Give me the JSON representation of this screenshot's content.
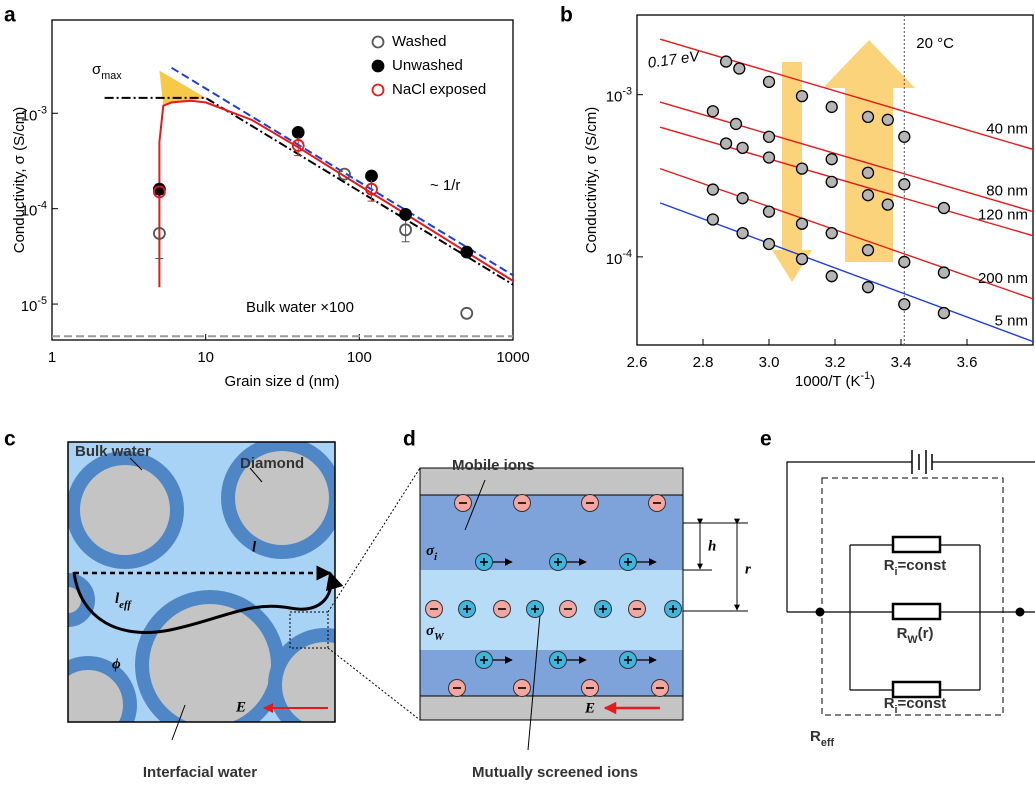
{
  "chart_data": [
    {
      "type": "scatter",
      "label": "a",
      "xlabel": "Grain size d (nm)",
      "ylabel": "Conductivity, σ (S/cm)",
      "xscale": "log",
      "yscale": "log",
      "xlim": [
        1,
        1000
      ],
      "ylim": [
        4.2e-06,
        0.0095
      ],
      "xticks": [
        1,
        10,
        100,
        1000
      ],
      "yticks": [
        {
          "value": 1e-05,
          "label": "10",
          "exp": "-5"
        },
        {
          "value": 0.0001,
          "label": "10",
          "exp": "-4"
        },
        {
          "value": 0.001,
          "label": "10",
          "exp": "-3"
        }
      ],
      "legend": "upper right",
      "series": [
        {
          "name": "Washed",
          "color": "#555555",
          "filled": false,
          "x": [
            5,
            80,
            200,
            500
          ],
          "values": [
            5.5e-05,
            0.00023,
            6e-05,
            8e-06
          ],
          "errors": [
            2.5e-05,
            null,
            1.5e-05,
            null
          ]
        },
        {
          "name": "Unwashed",
          "color": "#000000",
          "filled": true,
          "x": [
            5,
            40,
            120,
            200,
            500
          ],
          "values": [
            0.00016,
            0.00063,
            0.00022,
            8.7e-05,
            3.5e-05
          ],
          "errors": [
            null,
            null,
            null,
            null,
            null
          ]
        },
        {
          "name": "NaCl exposed",
          "color": "#e41a1c",
          "filled": false,
          "x": [
            5,
            40,
            120
          ],
          "values": [
            0.00015,
            0.00046,
            0.00016
          ],
          "errors": [
            null,
            0.0001,
            4e-05
          ]
        }
      ],
      "areas": [
        {
          "color": "#f7c948",
          "x": [
            5,
            10,
            8,
            6,
            5.3,
            5
          ],
          "values": [
            0.0028,
            0.00145,
            0.00135,
            0.0013,
            0.0012,
            0.0028
          ]
        }
      ],
      "curves": [
        {
          "color": "#999999",
          "style": "dashed",
          "x": [
            1,
            1000
          ],
          "values": [
            4.6e-06,
            4.6e-06
          ]
        },
        {
          "color": "#1f3fd6",
          "style": "dashed",
          "x": [
            6,
            1000
          ],
          "values": [
            0.003,
            2e-05
          ]
        },
        {
          "color": "#000000",
          "style": "dashdot",
          "x": [
            2.2,
            10,
            1000
          ],
          "values": [
            0.00145,
            0.00145,
            1.6e-05
          ]
        },
        {
          "color": "#e41a1c",
          "style": "solid",
          "x": [
            5,
            5,
            5.3,
            6,
            8,
            10,
            20,
            40,
            100,
            200,
            500,
            1000
          ],
          "values": [
            1.5e-05,
            0.0005,
            0.0012,
            0.0013,
            0.00135,
            0.0013,
            0.00085,
            0.00044,
            0.000175,
            8.8e-05,
            3.5e-05,
            1.75e-05
          ]
        }
      ],
      "annotations": {
        "sigma_max": {
          "base": "σ",
          "sub": "max"
        },
        "slope": "~ 1/r",
        "bulk": "Bulk water ×100"
      }
    },
    {
      "type": "scatter",
      "label": "b",
      "xlabel": {
        "base": "1000/T (K",
        "sup": "-1",
        "tail": ")"
      },
      "ylabel": "Conductivity, σ (S/cm)",
      "xscale": "linear",
      "yscale": "log",
      "xlim": [
        2.6,
        3.8
      ],
      "ylim": [
        2.86e-05,
        0.0031
      ],
      "xticks": [
        2.6,
        2.8,
        {
          "value": 3,
          "label": "3.0"
        },
        3.2,
        3.4,
        3.6
      ],
      "yticks": [
        {
          "value": 0.0001,
          "label": "10",
          "exp": "-4"
        },
        {
          "value": 0.001,
          "label": "10",
          "exp": "-3"
        }
      ],
      "marker_color": "#b5b5b5",
      "series": [
        {
          "name": "40 nm",
          "color": "#e41a1c",
          "x": [
            2.87,
            2.91,
            3.0,
            3.1,
            3.19,
            3.3,
            3.36,
            3.41
          ],
          "values": [
            0.0016,
            0.00145,
            0.0012,
            0.00098,
            0.00084,
            0.00073,
            0.0007,
            0.00055
          ],
          "fit_x": [
            2.67,
            3.8
          ],
          "fit_values": [
            0.0022,
            0.00046
          ]
        },
        {
          "name": "80 nm",
          "color": "#e41a1c",
          "x": [
            2.83,
            2.9,
            3.0,
            3.19,
            3.3,
            3.41
          ],
          "values": [
            0.00079,
            0.00066,
            0.00055,
            0.0004,
            0.00033,
            0.00028
          ],
          "fit_x": [
            2.67,
            3.8
          ],
          "fit_values": [
            0.0009,
            0.00019
          ]
        },
        {
          "name": "120 nm",
          "color": "#e41a1c",
          "x": [
            2.87,
            2.92,
            3.0,
            3.1,
            3.19,
            3.3,
            3.36,
            3.53
          ],
          "values": [
            0.0005,
            0.00047,
            0.00041,
            0.00035,
            0.00029,
            0.00024,
            0.00021,
            0.0002
          ],
          "fit_x": [
            2.67,
            3.8
          ],
          "fit_values": [
            0.00063,
            0.000135
          ]
        },
        {
          "name": "200 nm",
          "color": "#e41a1c",
          "x": [
            2.83,
            2.92,
            3.0,
            3.1,
            3.19,
            3.3,
            3.41,
            3.53
          ],
          "values": [
            0.00026,
            0.00023,
            0.00019,
            0.00016,
            0.00014,
            0.00011,
            9.3e-05,
            8e-05
          ],
          "fit_x": [
            2.67,
            3.8
          ],
          "fit_values": [
            0.00035,
            5.5e-05
          ]
        },
        {
          "name": "5 nm",
          "color": "#1f3fd6",
          "x": [
            2.83,
            2.92,
            3.0,
            3.1,
            3.19,
            3.3,
            3.41,
            3.53
          ],
          "values": [
            0.00017,
            0.00014,
            0.00012,
            9.7e-05,
            7.6e-05,
            6.5e-05,
            5.1e-05,
            4.5e-05
          ],
          "fit_x": [
            2.67,
            3.8
          ],
          "fit_values": [
            0.000215,
            3e-05
          ]
        }
      ],
      "vline": 3.41,
      "annotations": {
        "activation": "0.17 eV",
        "temperature": "20 °C"
      }
    }
  ],
  "diagrams": {
    "c": {
      "label": "c",
      "bulk_water": "Bulk water",
      "diamond": "Diamond",
      "path": "l",
      "path_eff": {
        "base": "l",
        "sub": "eff"
      },
      "porosity": "ϕ",
      "field": "E",
      "interfacial_water": "Interfacial water"
    },
    "d": {
      "label": "d",
      "mobile_ions": "Mobile ions",
      "sigma_i": {
        "base": "σ",
        "sub": "i"
      },
      "sigma_w": {
        "base": "σ",
        "sub": "W"
      },
      "h": "h",
      "r": "r",
      "field": "E",
      "screened_ions": "Mutually screened ions"
    },
    "e": {
      "label": "e",
      "r_i": [
        {
          "base": "R",
          "sub": "i",
          "rest": "=const"
        },
        {
          "base": "R",
          "sub": "i",
          "rest": "=const"
        }
      ],
      "r_w": {
        "base": "R",
        "sub": "W",
        "rest": "(r)"
      },
      "r_eff": {
        "base": "R",
        "sub": "eff"
      }
    }
  }
}
